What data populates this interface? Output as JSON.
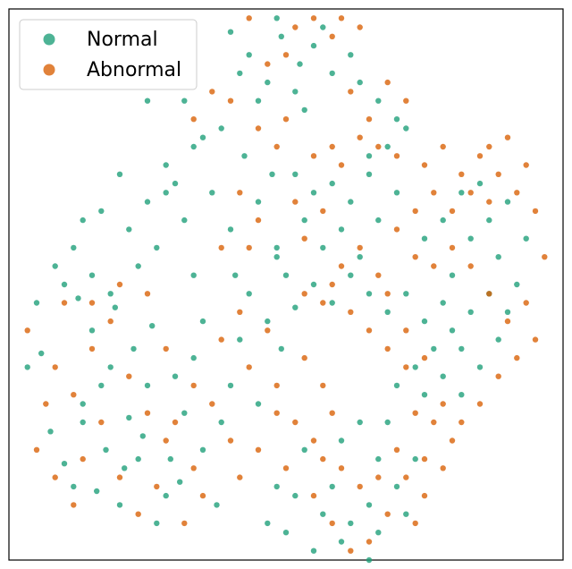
{
  "chart_data": {
    "type": "scatter",
    "title": "",
    "xlabel": "",
    "ylabel": "",
    "xlim": [
      -60,
      60
    ],
    "ylim": [
      -60,
      60
    ],
    "grid": false,
    "axes_ticks": false,
    "legend": {
      "placement": "top-left"
    },
    "series": [
      {
        "name": "Normal",
        "color": "#1b9e77",
        "points": [
          [
            -32,
            -38
          ],
          [
            -41,
            -45
          ],
          [
            -35,
            -40
          ],
          [
            -26,
            -46
          ],
          [
            -18,
            -36
          ],
          [
            -44,
            -30
          ],
          [
            -38,
            -18
          ],
          [
            -30,
            -22
          ],
          [
            -22,
            -28
          ],
          [
            -48,
            -39
          ],
          [
            -36,
            -48
          ],
          [
            -28,
            -52
          ],
          [
            -15,
            -48
          ],
          [
            -40,
            -22
          ],
          [
            -33,
            -14
          ],
          [
            -42,
            -10
          ],
          [
            -51,
            -32
          ],
          [
            -25,
            -38
          ],
          [
            -34,
            -29
          ],
          [
            -46,
            -44
          ],
          [
            -20,
            -16
          ],
          [
            -29,
            -9
          ],
          [
            -37,
            -5
          ],
          [
            -45,
            -3
          ],
          [
            -53,
            -15
          ],
          [
            -24,
            -20
          ],
          [
            -31,
            -33
          ],
          [
            -39,
            -36
          ],
          [
            -23,
            -43
          ],
          [
            -44,
            -26
          ],
          [
            -10,
            -12
          ],
          [
            -4,
            -8
          ],
          [
            -18,
            -8
          ],
          [
            -12,
            -22
          ],
          [
            -8,
            -2
          ],
          [
            -1,
            -14
          ],
          [
            -14,
            -30
          ],
          [
            -6,
            -26
          ],
          [
            2,
            -5
          ],
          [
            -20,
            2
          ],
          [
            -12,
            12
          ],
          [
            -6,
            18
          ],
          [
            -2,
            8
          ],
          [
            -16,
            20
          ],
          [
            -22,
            14
          ],
          [
            -9,
            28
          ],
          [
            -3,
            24
          ],
          [
            -26,
            26
          ],
          [
            -18,
            32
          ],
          [
            -11,
            2
          ],
          [
            -4,
            44
          ],
          [
            -8,
            50
          ],
          [
            3,
            48
          ],
          [
            -1,
            54
          ],
          [
            6,
            52
          ],
          [
            -6,
            40
          ],
          [
            2,
            42
          ],
          [
            10,
            46
          ],
          [
            -10,
            46
          ],
          [
            14,
            50
          ],
          [
            8,
            56
          ],
          [
            -2,
            58
          ],
          [
            -12,
            55
          ],
          [
            4,
            38
          ],
          [
            16,
            44
          ],
          [
            20,
            40
          ],
          [
            24,
            36
          ],
          [
            22,
            30
          ],
          [
            26,
            34
          ],
          [
            18,
            28
          ],
          [
            2,
            24
          ],
          [
            6,
            20
          ],
          [
            10,
            22
          ],
          [
            14,
            18
          ],
          [
            18,
            24
          ],
          [
            4,
            14
          ],
          [
            8,
            8
          ],
          [
            12,
            12
          ],
          [
            16,
            6
          ],
          [
            20,
            14
          ],
          [
            24,
            20
          ],
          [
            0,
            2
          ],
          [
            6,
            0
          ],
          [
            10,
            -4
          ],
          [
            14,
            2
          ],
          [
            -2,
            6
          ],
          [
            18,
            -2
          ],
          [
            22,
            -6
          ],
          [
            26,
            -2
          ],
          [
            30,
            -8
          ],
          [
            34,
            -4
          ],
          [
            36,
            -10
          ],
          [
            38,
            -14
          ],
          [
            32,
            -14
          ],
          [
            28,
            -18
          ],
          [
            24,
            -22
          ],
          [
            30,
            -24
          ],
          [
            34,
            -20
          ],
          [
            40,
            -6
          ],
          [
            44,
            -2
          ],
          [
            46,
            -12
          ],
          [
            42,
            -18
          ],
          [
            38,
            -24
          ],
          [
            48,
            -6
          ],
          [
            50,
            0
          ],
          [
            36,
            2
          ],
          [
            40,
            10
          ],
          [
            44,
            14
          ],
          [
            48,
            18
          ],
          [
            52,
            10
          ],
          [
            46,
            6
          ],
          [
            34,
            14
          ],
          [
            38,
            20
          ],
          [
            42,
            22
          ],
          [
            30,
            10
          ],
          [
            16,
            -30
          ],
          [
            12,
            -34
          ],
          [
            20,
            -38
          ],
          [
            24,
            -44
          ],
          [
            18,
            -48
          ],
          [
            10,
            -44
          ],
          [
            14,
            -52
          ],
          [
            20,
            -54
          ],
          [
            26,
            -50
          ],
          [
            8,
            -50
          ],
          [
            22,
            -30
          ],
          [
            28,
            -38
          ],
          [
            4,
            -36
          ],
          [
            -2,
            -44
          ],
          [
            -4,
            -52
          ],
          [
            0,
            -54
          ],
          [
            6,
            -58
          ],
          [
            12,
            -56
          ],
          [
            18,
            -60
          ],
          [
            2,
            -46
          ],
          [
            -54,
            -4
          ],
          [
            -50,
            4
          ],
          [
            -46,
            8
          ],
          [
            -42,
            2
          ],
          [
            -38,
            -2
          ],
          [
            -32,
            4
          ],
          [
            -28,
            8
          ],
          [
            -34,
            12
          ],
          [
            -40,
            16
          ],
          [
            -30,
            18
          ],
          [
            -26,
            20
          ],
          [
            -44,
            14
          ],
          [
            -48,
            0
          ],
          [
            -56,
            -18
          ],
          [
            -20,
            30
          ],
          [
            -24,
            22
          ],
          [
            -14,
            34
          ],
          [
            -22,
            40
          ],
          [
            -30,
            40
          ],
          [
            -36,
            24
          ]
        ]
      },
      {
        "name": "Abnormal",
        "color": "#d95f02",
        "points": [
          [
            -50,
            -18
          ],
          [
            -46,
            -24
          ],
          [
            -42,
            -14
          ],
          [
            -38,
            -8
          ],
          [
            -34,
            -20
          ],
          [
            -30,
            -28
          ],
          [
            -26,
            -34
          ],
          [
            -52,
            -26
          ],
          [
            -56,
            -10
          ],
          [
            -48,
            -4
          ],
          [
            -40,
            -30
          ],
          [
            -44,
            -38
          ],
          [
            -36,
            -42
          ],
          [
            -32,
            -50
          ],
          [
            -28,
            -44
          ],
          [
            -24,
            -30
          ],
          [
            -20,
            -40
          ],
          [
            -18,
            -46
          ],
          [
            -22,
            -52
          ],
          [
            -46,
            -48
          ],
          [
            -54,
            -36
          ],
          [
            -50,
            -42
          ],
          [
            -42,
            -4
          ],
          [
            -36,
            0
          ],
          [
            -30,
            -2
          ],
          [
            -26,
            -14
          ],
          [
            -20,
            -22
          ],
          [
            -16,
            -26
          ],
          [
            -12,
            -34
          ],
          [
            -10,
            -42
          ],
          [
            -8,
            -18
          ],
          [
            -2,
            -22
          ],
          [
            2,
            -30
          ],
          [
            6,
            -34
          ],
          [
            0,
            -40
          ],
          [
            -6,
            -36
          ],
          [
            -14,
            -12
          ],
          [
            -10,
            -6
          ],
          [
            -4,
            -10
          ],
          [
            4,
            -16
          ],
          [
            8,
            -22
          ],
          [
            10,
            -28
          ],
          [
            -2,
            -28
          ],
          [
            -6,
            14
          ],
          [
            -10,
            20
          ],
          [
            -14,
            8
          ],
          [
            -2,
            30
          ],
          [
            0,
            36
          ],
          [
            -6,
            34
          ],
          [
            -12,
            40
          ],
          [
            -16,
            42
          ],
          [
            -20,
            36
          ],
          [
            -24,
            44
          ],
          [
            -8,
            8
          ],
          [
            4,
            10
          ],
          [
            8,
            16
          ],
          [
            12,
            26
          ],
          [
            10,
            30
          ],
          [
            6,
            28
          ],
          [
            2,
            18
          ],
          [
            2,
            56
          ],
          [
            6,
            58
          ],
          [
            0,
            50
          ],
          [
            10,
            54
          ],
          [
            12,
            58
          ],
          [
            16,
            56
          ],
          [
            -4,
            48
          ],
          [
            -8,
            58
          ],
          [
            14,
            42
          ],
          [
            18,
            36
          ],
          [
            22,
            44
          ],
          [
            26,
            40
          ],
          [
            24,
            28
          ],
          [
            20,
            30
          ],
          [
            16,
            32
          ],
          [
            30,
            26
          ],
          [
            34,
            30
          ],
          [
            38,
            24
          ],
          [
            42,
            28
          ],
          [
            46,
            24
          ],
          [
            50,
            20
          ],
          [
            44,
            18
          ],
          [
            10,
            0
          ],
          [
            14,
            -6
          ],
          [
            18,
            -10
          ],
          [
            22,
            -14
          ],
          [
            26,
            -18
          ],
          [
            20,
            2
          ],
          [
            16,
            8
          ],
          [
            12,
            4
          ],
          [
            8,
            -4
          ],
          [
            4,
            -2
          ],
          [
            28,
            -28
          ],
          [
            32,
            -30
          ],
          [
            36,
            -34
          ],
          [
            30,
            -38
          ],
          [
            26,
            -42
          ],
          [
            24,
            -36
          ],
          [
            20,
            -42
          ],
          [
            16,
            -44
          ],
          [
            12,
            -40
          ],
          [
            8,
            -38
          ],
          [
            6,
            -46
          ],
          [
            10,
            -52
          ],
          [
            14,
            -58
          ],
          [
            18,
            -56
          ],
          [
            22,
            -50
          ],
          [
            28,
            -52
          ],
          [
            30,
            -46
          ],
          [
            34,
            -40
          ],
          [
            28,
            6
          ],
          [
            32,
            4
          ],
          [
            36,
            8
          ],
          [
            40,
            4
          ],
          [
            44,
            -2
          ],
          [
            48,
            -8
          ],
          [
            52,
            -4
          ],
          [
            54,
            -12
          ],
          [
            50,
            -16
          ],
          [
            46,
            -20
          ],
          [
            42,
            -26
          ],
          [
            38,
            -30
          ],
          [
            34,
            -26
          ],
          [
            30,
            -16
          ],
          [
            26,
            -10
          ],
          [
            22,
            -2
          ],
          [
            24,
            12
          ],
          [
            28,
            16
          ],
          [
            32,
            20
          ],
          [
            36,
            16
          ],
          [
            40,
            20
          ],
          [
            44,
            30
          ],
          [
            48,
            32
          ],
          [
            52,
            26
          ],
          [
            54,
            16
          ],
          [
            56,
            6
          ]
        ]
      }
    ]
  }
}
